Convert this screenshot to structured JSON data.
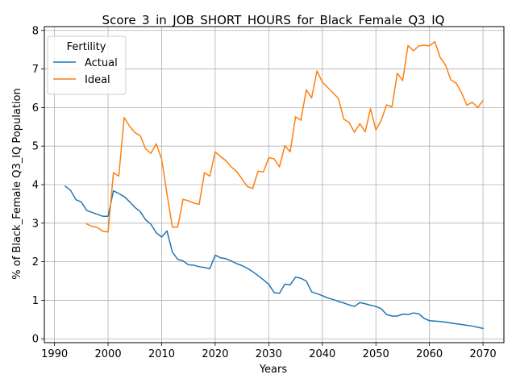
{
  "chart_data": {
    "type": "line",
    "title": "Score_3_in_JOB_SHORT_HOURS_for_Black_Female_Q3_IQ",
    "xlabel": "Years",
    "ylabel": "% of Black_Female Q3_IQ Population",
    "xlim": [
      1988.1,
      2073.9
    ],
    "ylim": [
      -0.1,
      8.1
    ],
    "xticks": [
      1990,
      2000,
      2010,
      2020,
      2030,
      2040,
      2050,
      2060,
      2070
    ],
    "yticks": [
      0,
      1,
      2,
      3,
      4,
      5,
      6,
      7,
      8
    ],
    "grid": true,
    "legend": {
      "title": "Fertility",
      "placement": "upper-left"
    },
    "series": [
      {
        "name": "Actual",
        "color": "#1f77b4",
        "x": [
          1992,
          1993,
          1994,
          1995,
          1996,
          1997,
          1998,
          1999,
          2000,
          2001,
          2002,
          2003,
          2004,
          2005,
          2006,
          2007,
          2008,
          2009,
          2010,
          2011,
          2012,
          2013,
          2014,
          2015,
          2016,
          2017,
          2018,
          2019,
          2020,
          2021,
          2022,
          2023,
          2024,
          2025,
          2026,
          2027,
          2028,
          2029,
          2030,
          2031,
          2032,
          2033,
          2034,
          2035,
          2036,
          2037,
          2038,
          2039,
          2040,
          2041,
          2042,
          2043,
          2044,
          2045,
          2046,
          2047,
          2048,
          2049,
          2050,
          2051,
          2052,
          2053,
          2054,
          2055,
          2056,
          2057,
          2058,
          2059,
          2060,
          2061,
          2062,
          2063,
          2064,
          2065,
          2066,
          2067,
          2068,
          2069,
          2070
        ],
        "y": [
          3.96,
          3.85,
          3.61,
          3.55,
          3.33,
          3.28,
          3.23,
          3.18,
          3.18,
          3.84,
          3.77,
          3.69,
          3.56,
          3.41,
          3.3,
          3.09,
          2.97,
          2.75,
          2.64,
          2.8,
          2.25,
          2.06,
          2.02,
          1.92,
          1.91,
          1.87,
          1.85,
          1.82,
          2.17,
          2.1,
          2.08,
          2.02,
          1.95,
          1.9,
          1.83,
          1.74,
          1.64,
          1.53,
          1.41,
          1.2,
          1.18,
          1.42,
          1.4,
          1.6,
          1.57,
          1.5,
          1.22,
          1.17,
          1.12,
          1.06,
          1.02,
          0.97,
          0.93,
          0.88,
          0.84,
          0.94,
          0.91,
          0.87,
          0.84,
          0.78,
          0.63,
          0.59,
          0.59,
          0.64,
          0.63,
          0.67,
          0.65,
          0.53,
          0.47,
          0.46,
          0.45,
          0.43,
          0.41,
          0.39,
          0.37,
          0.35,
          0.33,
          0.3,
          0.27
        ]
      },
      {
        "name": "Ideal",
        "color": "#ff7f0e",
        "x": [
          1996,
          1997,
          1998,
          1999,
          2000,
          2001,
          2002,
          2003,
          2004,
          2005,
          2006,
          2007,
          2008,
          2009,
          2010,
          2011,
          2012,
          2013,
          2014,
          2015,
          2016,
          2017,
          2018,
          2019,
          2020,
          2021,
          2022,
          2023,
          2024,
          2025,
          2026,
          2027,
          2028,
          2029,
          2030,
          2031,
          2032,
          2033,
          2034,
          2035,
          2036,
          2037,
          2038,
          2039,
          2040,
          2041,
          2042,
          2043,
          2044,
          2045,
          2046,
          2047,
          2048,
          2049,
          2050,
          2051,
          2052,
          2053,
          2054,
          2055,
          2056,
          2057,
          2058,
          2059,
          2060,
          2061,
          2062,
          2063,
          2064,
          2065,
          2066,
          2067,
          2068,
          2069,
          2070
        ],
        "y": [
          2.98,
          2.92,
          2.89,
          2.79,
          2.77,
          4.31,
          4.22,
          5.74,
          5.52,
          5.35,
          5.27,
          4.93,
          4.81,
          5.06,
          4.66,
          3.76,
          2.9,
          2.9,
          3.62,
          3.58,
          3.52,
          3.49,
          4.31,
          4.22,
          4.85,
          4.73,
          4.62,
          4.46,
          4.34,
          4.15,
          3.95,
          3.9,
          4.35,
          4.33,
          4.7,
          4.67,
          4.46,
          5.01,
          4.85,
          5.76,
          5.67,
          6.46,
          6.25,
          6.95,
          6.66,
          6.52,
          6.38,
          6.24,
          5.7,
          5.61,
          5.36,
          5.58,
          5.37,
          5.97,
          5.42,
          5.67,
          6.07,
          6.02,
          6.89,
          6.7,
          7.61,
          7.47,
          7.6,
          7.62,
          7.6,
          7.71,
          7.3,
          7.1,
          6.72,
          6.63,
          6.38,
          6.06,
          6.14,
          6.0,
          6.18
        ]
      }
    ]
  }
}
